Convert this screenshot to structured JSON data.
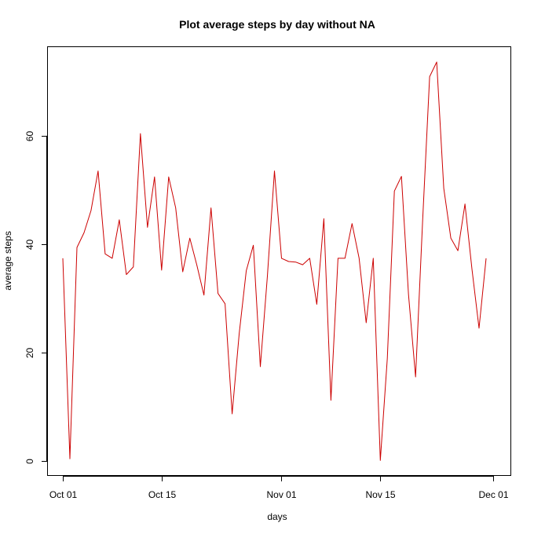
{
  "chart_data": {
    "type": "line",
    "title": "Plot average steps by day without NA",
    "xlabel": "days",
    "ylabel": "average steps",
    "x_type": "date",
    "xlim": [
      "2012-10-01",
      "2012-12-01"
    ],
    "ylim": [
      0,
      73.6
    ],
    "x_ticks": [
      {
        "value": "2012-10-01",
        "label": "Oct 01"
      },
      {
        "value": "2012-10-15",
        "label": "Oct 15"
      },
      {
        "value": "2012-11-01",
        "label": "Nov 01"
      },
      {
        "value": "2012-11-15",
        "label": "Nov 15"
      },
      {
        "value": "2012-12-01",
        "label": "Dec 01"
      }
    ],
    "y_ticks": [
      0,
      20,
      40,
      60
    ],
    "grid": false,
    "series_color": "#cc0000",
    "series": [
      {
        "x": [
          "2012-10-01",
          "2012-10-02",
          "2012-10-03",
          "2012-10-04",
          "2012-10-05",
          "2012-10-06",
          "2012-10-07",
          "2012-10-08",
          "2012-10-09",
          "2012-10-10",
          "2012-10-11",
          "2012-10-12",
          "2012-10-13",
          "2012-10-14",
          "2012-10-15",
          "2012-10-16",
          "2012-10-17",
          "2012-10-18",
          "2012-10-19",
          "2012-10-20",
          "2012-10-21",
          "2012-10-22",
          "2012-10-23",
          "2012-10-24",
          "2012-10-25",
          "2012-10-26",
          "2012-10-27",
          "2012-10-28",
          "2012-10-29",
          "2012-10-30",
          "2012-10-31",
          "2012-11-01",
          "2012-11-02",
          "2012-11-03",
          "2012-11-04",
          "2012-11-05",
          "2012-11-06",
          "2012-11-07",
          "2012-11-08",
          "2012-11-09",
          "2012-11-10",
          "2012-11-11",
          "2012-11-12",
          "2012-11-13",
          "2012-11-14",
          "2012-11-15",
          "2012-11-16",
          "2012-11-17",
          "2012-11-18",
          "2012-11-19",
          "2012-11-20",
          "2012-11-21",
          "2012-11-22",
          "2012-11-23",
          "2012-11-24",
          "2012-11-25",
          "2012-11-26",
          "2012-11-27",
          "2012-11-28",
          "2012-11-29",
          "2012-11-30"
        ],
        "y": [
          37.4,
          0.4,
          39.4,
          42.1,
          46.2,
          53.5,
          38.2,
          37.4,
          44.5,
          34.4,
          35.8,
          60.4,
          43.1,
          52.4,
          35.2,
          52.4,
          46.7,
          34.9,
          41.1,
          36.1,
          30.6,
          46.7,
          30.9,
          29.0,
          8.7,
          23.5,
          35.1,
          39.8,
          17.4,
          34.1,
          53.5,
          37.4,
          36.8,
          36.7,
          36.2,
          37.4,
          28.9,
          44.7,
          11.2,
          37.4,
          37.4,
          43.8,
          37.4,
          25.5,
          37.4,
          0.1,
          18.9,
          49.8,
          52.5,
          30.7,
          15.5,
          44.4,
          70.9,
          73.6,
          50.3,
          41.1,
          38.8,
          47.4,
          35.4,
          24.5,
          37.4
        ]
      }
    ]
  }
}
